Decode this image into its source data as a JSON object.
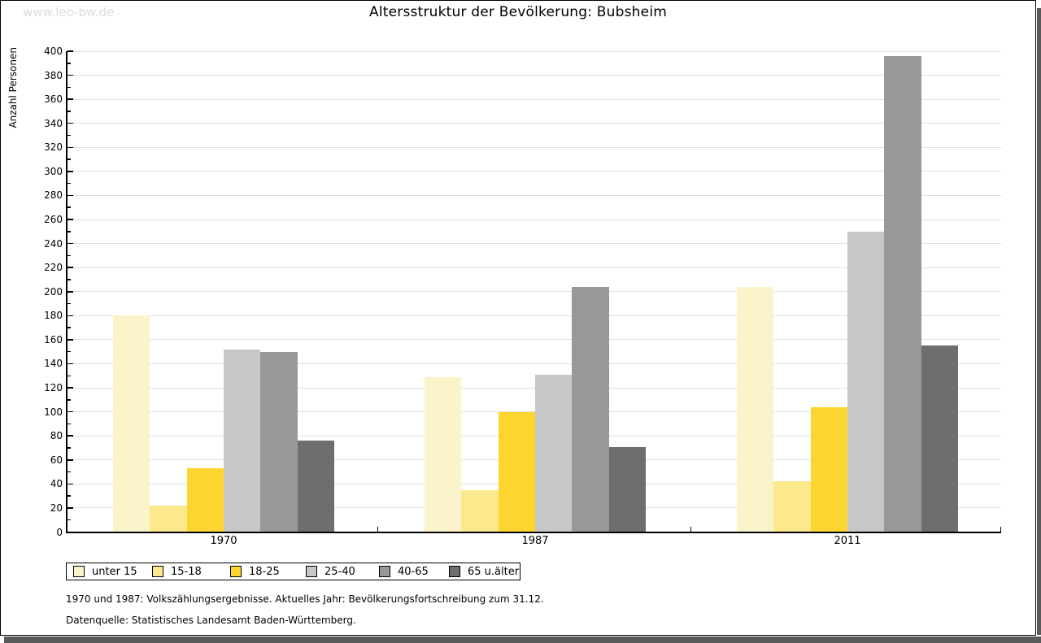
{
  "watermark": "www.leo-bw.de",
  "title": "Altersstruktur der Bevölkerung: Bubsheim",
  "footnotes": [
    "1970 und 1987: Volkszählungsergebnisse. Aktuelles Jahr: Bevölkerungsfortschreibung zum 31.12.",
    "Datenquelle: Statistisches Landesamt Baden-Württemberg."
  ],
  "colors": {
    "gridline": "#e0e0e0",
    "axis": "#000000",
    "watermark": "#dcdcdc",
    "scrollbar": "#5a5a5a"
  },
  "chart_data": {
    "type": "bar",
    "title": "Altersstruktur der Bevölkerung: Bubsheim",
    "xlabel": "",
    "ylabel": "Anzahl Personen",
    "ylim": [
      0,
      400
    ],
    "ytick_major_step": 20,
    "ytick_minor_step": 10,
    "grid": "horizontal",
    "legend_position": "bottom-left",
    "categories": [
      "1970",
      "1987",
      "2011"
    ],
    "series": [
      {
        "name": "unter 15",
        "color": "#fbf3c9",
        "values": [
          180,
          129,
          204
        ]
      },
      {
        "name": "15-18",
        "color": "#fce98e",
        "values": [
          22,
          35,
          42
        ]
      },
      {
        "name": "18-25",
        "color": "#fdd531",
        "values": [
          53,
          100,
          104
        ]
      },
      {
        "name": "25-40",
        "color": "#c7c7c7",
        "values": [
          152,
          131,
          250
        ]
      },
      {
        "name": "40-65",
        "color": "#989898",
        "values": [
          150,
          204,
          396
        ]
      },
      {
        "name": "65 u.älter",
        "color": "#6e6e6e",
        "values": [
          76,
          71,
          155
        ]
      }
    ]
  }
}
